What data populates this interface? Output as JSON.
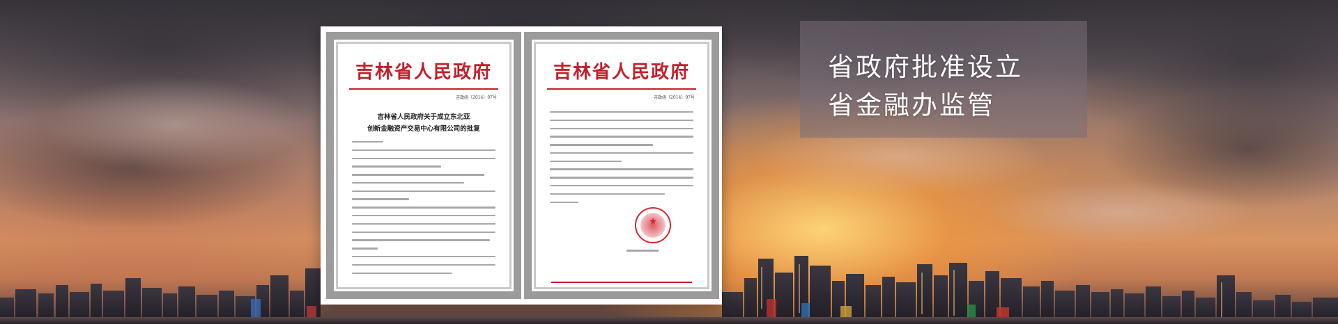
{
  "banner": {
    "headline": {
      "line1": "省政府批准设立",
      "line2": "省金融办监管"
    }
  },
  "documents": {
    "left": {
      "issuer": "吉林省人民政府",
      "doc_number": "吉政函〔2014〕97号",
      "heading_line1": "吉林省人民政府关于成立东北亚",
      "heading_line2": "创新金融资产交易中心有限公司的批复"
    },
    "right": {
      "issuer": "吉林省人民政府",
      "doc_number": "吉政函〔2014〕97号"
    }
  },
  "colors": {
    "letterhead_red": "#c2202b",
    "panel_bg": "rgba(120,110,120,0.55)",
    "headline_text": "#ffffff"
  },
  "icons": {
    "seal": "official-seal-icon"
  }
}
